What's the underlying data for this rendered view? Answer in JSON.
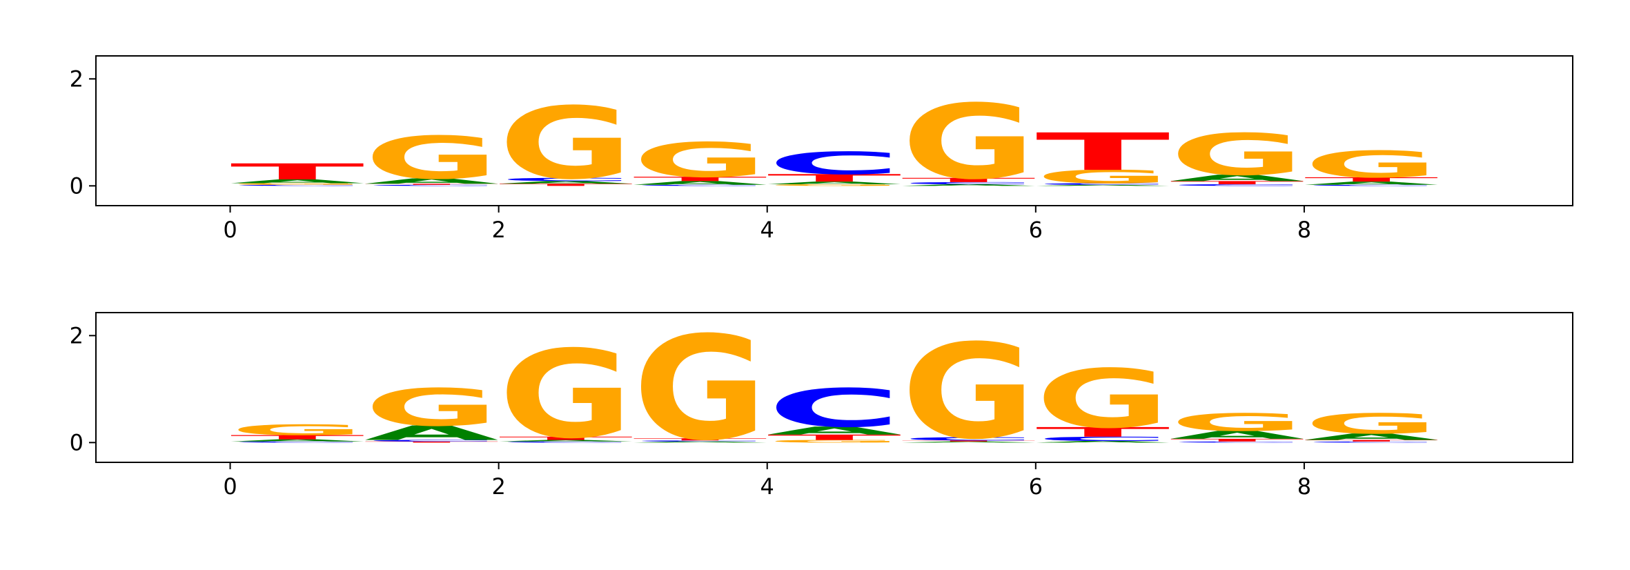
{
  "chart_data": [
    {
      "type": "logo",
      "x": [
        0,
        1,
        2,
        3,
        4,
        5,
        6,
        7,
        8
      ],
      "series": [
        {
          "name": "A",
          "color": "#008000",
          "values": [
            0.07,
            0.1,
            0.05,
            0.07,
            0.05,
            0.03,
            0.02,
            0.12,
            0.06
          ]
        },
        {
          "name": "C",
          "color": "#0000ff",
          "values": [
            0.02,
            0.02,
            0.06,
            0.02,
            0.42,
            0.04,
            0.03,
            0.03,
            0.02
          ]
        },
        {
          "name": "G",
          "color": "#ffa500",
          "values": [
            0.03,
            0.8,
            1.35,
            0.65,
            0.03,
            1.4,
            0.25,
            0.78,
            0.5
          ]
        },
        {
          "name": "T",
          "color": "#ff0000",
          "values": [
            0.3,
            0.02,
            0.04,
            0.08,
            0.14,
            0.08,
            0.7,
            0.06,
            0.08
          ]
        }
      ],
      "xlim": [
        -1,
        10
      ],
      "xticks": [
        0,
        2,
        4,
        6,
        8
      ],
      "ylim": [
        -0.37,
        2.43
      ],
      "yticks": [
        0,
        2
      ]
    },
    {
      "type": "logo",
      "x": [
        0,
        1,
        2,
        3,
        4,
        5,
        6,
        7,
        8
      ],
      "series": [
        {
          "name": "A",
          "color": "#008000",
          "values": [
            0.04,
            0.27,
            0.03,
            0.02,
            0.15,
            0.02,
            0.03,
            0.15,
            0.12
          ]
        },
        {
          "name": "C",
          "color": "#0000ff",
          "values": [
            0.02,
            0.03,
            0.02,
            0.02,
            0.72,
            0.06,
            0.08,
            0.02,
            0.02
          ]
        },
        {
          "name": "G",
          "color": "#ffa500",
          "values": [
            0.2,
            0.7,
            1.65,
            1.95,
            0.05,
            1.78,
            1.1,
            0.33,
            0.38
          ]
        },
        {
          "name": "T",
          "color": "#ff0000",
          "values": [
            0.08,
            0.02,
            0.06,
            0.04,
            0.1,
            0.02,
            0.18,
            0.05,
            0.03
          ]
        }
      ],
      "xlim": [
        -1,
        10
      ],
      "xticks": [
        0,
        2,
        4,
        6,
        8
      ],
      "ylim": [
        -0.37,
        2.43
      ],
      "yticks": [
        0,
        2
      ]
    }
  ]
}
